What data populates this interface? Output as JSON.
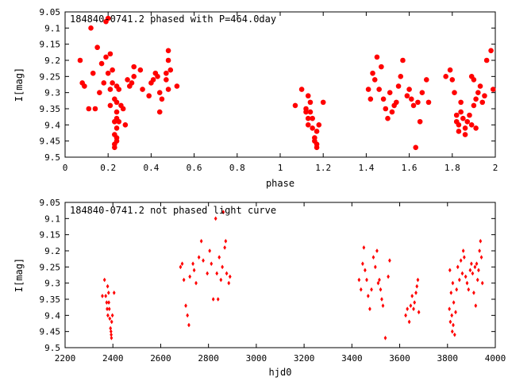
{
  "chart_data": [
    {
      "type": "scatter",
      "title": "184840-0741.2 phased with P=464.0day",
      "xlabel": "phase",
      "ylabel": "I[mag]",
      "xlim": [
        0,
        2
      ],
      "ylim": [
        9.05,
        9.5
      ],
      "y_inverted": true,
      "xticks": [
        "0",
        "0.2",
        "0.4",
        "0.6",
        "0.8",
        "1",
        "1.2",
        "1.4",
        "1.6",
        "1.8",
        "2"
      ],
      "yticks": [
        "9.05",
        "9.1",
        "9.15",
        "9.2",
        "9.25",
        "9.3",
        "9.35",
        "9.4",
        "9.45",
        "9.5"
      ],
      "marker_color": "#ff0000",
      "marker": "filled-circle",
      "series": [
        {
          "points": [
            [
              0.07,
              9.2
            ],
            [
              0.08,
              9.27
            ],
            [
              0.09,
              9.28
            ],
            [
              0.11,
              9.35
            ],
            [
              0.12,
              9.1
            ],
            [
              0.13,
              9.24
            ],
            [
              0.14,
              9.35
            ],
            [
              0.15,
              9.16
            ],
            [
              0.16,
              9.3
            ],
            [
              0.17,
              9.21
            ],
            [
              0.18,
              9.27
            ],
            [
              0.19,
              9.08
            ],
            [
              0.19,
              9.19
            ],
            [
              0.2,
              9.07
            ],
            [
              0.2,
              9.24
            ],
            [
              0.21,
              9.18
            ],
            [
              0.21,
              9.29
            ],
            [
              0.21,
              9.34
            ],
            [
              0.22,
              9.23
            ],
            [
              0.22,
              9.27
            ],
            [
              0.23,
              9.32
            ],
            [
              0.23,
              9.39
            ],
            [
              0.23,
              9.43
            ],
            [
              0.23,
              9.46
            ],
            [
              0.23,
              9.47
            ],
            [
              0.24,
              9.33
            ],
            [
              0.24,
              9.36
            ],
            [
              0.24,
              9.38
            ],
            [
              0.24,
              9.41
            ],
            [
              0.24,
              9.44
            ],
            [
              0.24,
              9.45
            ],
            [
              0.24,
              9.28
            ],
            [
              0.25,
              9.39
            ],
            [
              0.25,
              9.29
            ],
            [
              0.26,
              9.34
            ],
            [
              0.27,
              9.35
            ],
            [
              0.28,
              9.4
            ],
            [
              0.29,
              9.26
            ],
            [
              0.3,
              9.28
            ],
            [
              0.31,
              9.27
            ],
            [
              0.32,
              9.22
            ],
            [
              0.32,
              9.25
            ],
            [
              0.35,
              9.23
            ],
            [
              0.36,
              9.29
            ],
            [
              0.39,
              9.31
            ],
            [
              0.4,
              9.27
            ],
            [
              0.41,
              9.26
            ],
            [
              0.42,
              9.24
            ],
            [
              0.43,
              9.25
            ],
            [
              0.44,
              9.3
            ],
            [
              0.44,
              9.36
            ],
            [
              0.45,
              9.32
            ],
            [
              0.47,
              9.24
            ],
            [
              0.47,
              9.26
            ],
            [
              0.48,
              9.29
            ],
            [
              0.48,
              9.2
            ],
            [
              0.48,
              9.17
            ],
            [
              0.49,
              9.23
            ],
            [
              0.52,
              9.28
            ],
            [
              1.07,
              9.34
            ],
            [
              1.1,
              9.29
            ],
            [
              1.12,
              9.35
            ],
            [
              1.12,
              9.36
            ],
            [
              1.13,
              9.38
            ],
            [
              1.13,
              9.31
            ],
            [
              1.13,
              9.4
            ],
            [
              1.14,
              9.33
            ],
            [
              1.14,
              9.36
            ],
            [
              1.15,
              9.38
            ],
            [
              1.15,
              9.41
            ],
            [
              1.16,
              9.44
            ],
            [
              1.16,
              9.45
            ],
            [
              1.17,
              9.46
            ],
            [
              1.17,
              9.47
            ],
            [
              1.17,
              9.42
            ],
            [
              1.18,
              9.4
            ],
            [
              1.2,
              9.33
            ],
            [
              1.41,
              9.29
            ],
            [
              1.42,
              9.32
            ],
            [
              1.43,
              9.24
            ],
            [
              1.44,
              9.26
            ],
            [
              1.45,
              9.19
            ],
            [
              1.46,
              9.29
            ],
            [
              1.47,
              9.22
            ],
            [
              1.48,
              9.32
            ],
            [
              1.49,
              9.35
            ],
            [
              1.5,
              9.38
            ],
            [
              1.51,
              9.3
            ],
            [
              1.52,
              9.36
            ],
            [
              1.53,
              9.34
            ],
            [
              1.54,
              9.33
            ],
            [
              1.55,
              9.28
            ],
            [
              1.56,
              9.25
            ],
            [
              1.57,
              9.2
            ],
            [
              1.59,
              9.31
            ],
            [
              1.6,
              9.29
            ],
            [
              1.61,
              9.32
            ],
            [
              1.62,
              9.34
            ],
            [
              1.63,
              9.47
            ],
            [
              1.64,
              9.33
            ],
            [
              1.65,
              9.39
            ],
            [
              1.66,
              9.3
            ],
            [
              1.68,
              9.26
            ],
            [
              1.69,
              9.33
            ],
            [
              1.77,
              9.25
            ],
            [
              1.79,
              9.23
            ],
            [
              1.8,
              9.26
            ],
            [
              1.81,
              9.3
            ],
            [
              1.82,
              9.37
            ],
            [
              1.82,
              9.39
            ],
            [
              1.83,
              9.4
            ],
            [
              1.83,
              9.42
            ],
            [
              1.84,
              9.36
            ],
            [
              1.84,
              9.33
            ],
            [
              1.85,
              9.38
            ],
            [
              1.86,
              9.41
            ],
            [
              1.86,
              9.43
            ],
            [
              1.87,
              9.39
            ],
            [
              1.88,
              9.37
            ],
            [
              1.89,
              9.25
            ],
            [
              1.89,
              9.4
            ],
            [
              1.9,
              9.26
            ],
            [
              1.9,
              9.34
            ],
            [
              1.91,
              9.32
            ],
            [
              1.91,
              9.41
            ],
            [
              1.92,
              9.3
            ],
            [
              1.93,
              9.28
            ],
            [
              1.94,
              9.33
            ],
            [
              1.95,
              9.31
            ],
            [
              1.96,
              9.2
            ],
            [
              1.98,
              9.17
            ],
            [
              1.99,
              9.29
            ]
          ]
        }
      ]
    },
    {
      "type": "scatter",
      "title": "184840-0741.2 not phased light curve",
      "xlabel": "hjd0",
      "ylabel": "I[mag]",
      "xlim": [
        2200,
        4000
      ],
      "ylim": [
        9.05,
        9.5
      ],
      "y_inverted": true,
      "xticks": [
        "2200",
        "2400",
        "2600",
        "2800",
        "3000",
        "3200",
        "3400",
        "3600",
        "3800",
        "4000"
      ],
      "yticks": [
        "9.05",
        "9.1",
        "9.15",
        "9.2",
        "9.25",
        "9.3",
        "9.35",
        "9.4",
        "9.45",
        "9.5"
      ],
      "marker_color": "#ff0000",
      "marker": "small-diamond",
      "series": [
        {
          "points": [
            [
              2356,
              9.34
            ],
            [
              2365,
              9.29
            ],
            [
              2370,
              9.34
            ],
            [
              2374,
              9.36
            ],
            [
              2376,
              9.38
            ],
            [
              2378,
              9.31
            ],
            [
              2379,
              9.4
            ],
            [
              2382,
              9.33
            ],
            [
              2383,
              9.36
            ],
            [
              2385,
              9.38
            ],
            [
              2387,
              9.41
            ],
            [
              2390,
              9.44
            ],
            [
              2392,
              9.45
            ],
            [
              2393,
              9.46
            ],
            [
              2394,
              9.47
            ],
            [
              2395,
              9.42
            ],
            [
              2398,
              9.4
            ],
            [
              2405,
              9.33
            ],
            [
              2683,
              9.25
            ],
            [
              2690,
              9.24
            ],
            [
              2697,
              9.29
            ],
            [
              2705,
              9.37
            ],
            [
              2712,
              9.4
            ],
            [
              2718,
              9.43
            ],
            [
              2722,
              9.28
            ],
            [
              2735,
              9.24
            ],
            [
              2740,
              9.26
            ],
            [
              2748,
              9.3
            ],
            [
              2760,
              9.22
            ],
            [
              2770,
              9.17
            ],
            [
              2778,
              9.23
            ],
            [
              2795,
              9.27
            ],
            [
              2805,
              9.2
            ],
            [
              2812,
              9.24
            ],
            [
              2820,
              9.35
            ],
            [
              2830,
              9.1
            ],
            [
              2835,
              9.27
            ],
            [
              2840,
              9.35
            ],
            [
              2845,
              9.22
            ],
            [
              2852,
              9.29
            ],
            [
              2858,
              9.25
            ],
            [
              2862,
              9.08
            ],
            [
              2868,
              9.19
            ],
            [
              2872,
              9.17
            ],
            [
              2876,
              9.27
            ],
            [
              2885,
              9.3
            ],
            [
              2890,
              9.28
            ],
            [
              3430,
              9.29
            ],
            [
              3438,
              9.32
            ],
            [
              3445,
              9.24
            ],
            [
              3450,
              9.19
            ],
            [
              3455,
              9.26
            ],
            [
              3462,
              9.29
            ],
            [
              3468,
              9.34
            ],
            [
              3475,
              9.38
            ],
            [
              3482,
              9.32
            ],
            [
              3490,
              9.22
            ],
            [
              3498,
              9.25
            ],
            [
              3505,
              9.2
            ],
            [
              3510,
              9.3
            ],
            [
              3515,
              9.29
            ],
            [
              3520,
              9.32
            ],
            [
              3525,
              9.35
            ],
            [
              3530,
              9.37
            ],
            [
              3540,
              9.47
            ],
            [
              3552,
              9.28
            ],
            [
              3558,
              9.23
            ],
            [
              3625,
              9.4
            ],
            [
              3632,
              9.38
            ],
            [
              3640,
              9.42
            ],
            [
              3646,
              9.37
            ],
            [
              3652,
              9.34
            ],
            [
              3658,
              9.38
            ],
            [
              3662,
              9.36
            ],
            [
              3668,
              9.33
            ],
            [
              3672,
              9.31
            ],
            [
              3676,
              9.29
            ],
            [
              3680,
              9.39
            ],
            [
              3808,
              9.38
            ],
            [
              3810,
              9.26
            ],
            [
              3812,
              9.42
            ],
            [
              3815,
              9.33
            ],
            [
              3818,
              9.4
            ],
            [
              3820,
              9.45
            ],
            [
              3822,
              9.3
            ],
            [
              3824,
              9.43
            ],
            [
              3826,
              9.36
            ],
            [
              3830,
              9.46
            ],
            [
              3834,
              9.39
            ],
            [
              3838,
              9.32
            ],
            [
              3843,
              9.25
            ],
            [
              3850,
              9.29
            ],
            [
              3856,
              9.23
            ],
            [
              3862,
              9.27
            ],
            [
              3866,
              9.2
            ],
            [
              3870,
              9.22
            ],
            [
              3876,
              9.28
            ],
            [
              3882,
              9.3
            ],
            [
              3888,
              9.32
            ],
            [
              3895,
              9.26
            ],
            [
              3900,
              9.24
            ],
            [
              3905,
              9.27
            ],
            [
              3910,
              9.33
            ],
            [
              3915,
              9.25
            ],
            [
              3918,
              9.37
            ],
            [
              3922,
              9.24
            ],
            [
              3926,
              9.29
            ],
            [
              3930,
              9.26
            ],
            [
              3934,
              9.2
            ],
            [
              3938,
              9.17
            ],
            [
              3942,
              9.22
            ],
            [
              3946,
              9.3
            ]
          ]
        }
      ]
    }
  ]
}
